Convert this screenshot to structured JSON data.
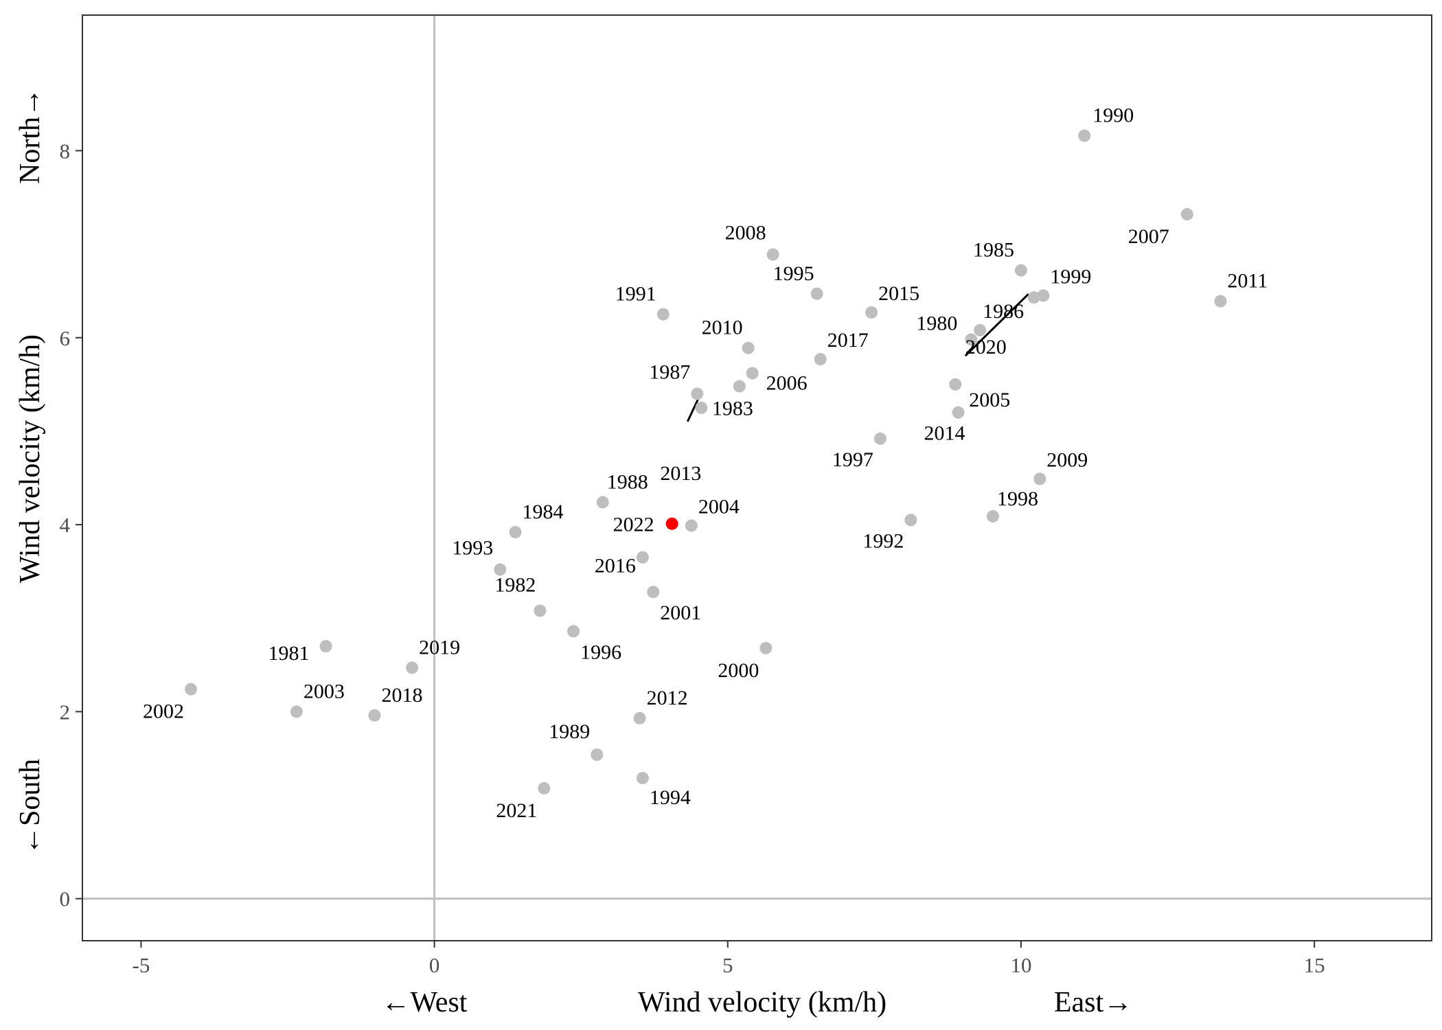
{
  "chart_data": {
    "type": "scatter",
    "xlabel": "Wind velocity (km/h)",
    "ylabel": "Wind velocity (km/h)",
    "x_direction_labels": {
      "negative": "←West",
      "positive": "East→"
    },
    "y_direction_labels": {
      "negative": "←South",
      "positive": "North→"
    },
    "xlim": [
      -6.0,
      17.0
    ],
    "ylim": [
      -0.45,
      9.45
    ],
    "x_ticks": [
      -5,
      0,
      5,
      10,
      15
    ],
    "y_ticks": [
      0,
      2,
      4,
      6,
      8
    ],
    "x_tick_labels": [
      "-5",
      "0",
      "5",
      "10",
      "15"
    ],
    "y_tick_labels": [
      "0",
      "2",
      "4",
      "6",
      "8"
    ],
    "grid": false,
    "reference_lines": {
      "x": 0,
      "y": 0
    },
    "point_color": "#bebebe",
    "highlight_color": "#ff0000",
    "label_color": "#000000",
    "points": [
      {
        "label": "1980",
        "x": 9.15,
        "y": 5.98
      },
      {
        "label": "1981",
        "x": -1.85,
        "y": 2.7
      },
      {
        "label": "1982",
        "x": 1.8,
        "y": 3.08
      },
      {
        "label": "1983",
        "x": 5.2,
        "y": 5.48
      },
      {
        "label": "1984",
        "x": 1.38,
        "y": 3.92
      },
      {
        "label": "1985",
        "x": 10.0,
        "y": 6.72
      },
      {
        "label": "1986",
        "x": 9.3,
        "y": 6.08
      },
      {
        "label": "1987",
        "x": 4.48,
        "y": 5.4
      },
      {
        "label": "1988",
        "x": 2.87,
        "y": 4.24
      },
      {
        "label": "1989",
        "x": 2.77,
        "y": 1.54
      },
      {
        "label": "1990",
        "x": 11.08,
        "y": 8.16
      },
      {
        "label": "1991",
        "x": 3.9,
        "y": 6.25
      },
      {
        "label": "1992",
        "x": 8.12,
        "y": 4.05
      },
      {
        "label": "1993",
        "x": 1.12,
        "y": 3.52
      },
      {
        "label": "1994",
        "x": 3.55,
        "y": 1.29
      },
      {
        "label": "1995",
        "x": 6.52,
        "y": 6.47
      },
      {
        "label": "1996",
        "x": 2.37,
        "y": 2.86
      },
      {
        "label": "1997",
        "x": 7.6,
        "y": 4.92
      },
      {
        "label": "1998",
        "x": 9.52,
        "y": 4.09
      },
      {
        "label": "1999",
        "x": 10.38,
        "y": 6.45
      },
      {
        "label": "2000",
        "x": 5.65,
        "y": 2.68
      },
      {
        "label": "2001",
        "x": 3.73,
        "y": 3.28
      },
      {
        "label": "2002",
        "x": -4.15,
        "y": 2.24
      },
      {
        "label": "2003",
        "x": -2.35,
        "y": 2.0
      },
      {
        "label": "2004",
        "x": 4.38,
        "y": 3.99
      },
      {
        "label": "2005",
        "x": 8.88,
        "y": 5.5
      },
      {
        "label": "2006",
        "x": 5.42,
        "y": 5.62
      },
      {
        "label": "2007",
        "x": 12.83,
        "y": 7.32
      },
      {
        "label": "2008",
        "x": 5.77,
        "y": 6.89
      },
      {
        "label": "2009",
        "x": 10.32,
        "y": 4.49
      },
      {
        "label": "2010",
        "x": 5.35,
        "y": 5.89
      },
      {
        "label": "2011",
        "x": 13.4,
        "y": 6.39
      },
      {
        "label": "2012",
        "x": 3.5,
        "y": 1.93
      },
      {
        "label": "2013",
        "x": 4.55,
        "y": 5.25
      },
      {
        "label": "2014",
        "x": 8.93,
        "y": 5.2
      },
      {
        "label": "2015",
        "x": 7.45,
        "y": 6.27
      },
      {
        "label": "2016",
        "x": 3.55,
        "y": 3.65
      },
      {
        "label": "2017",
        "x": 6.58,
        "y": 5.77
      },
      {
        "label": "2018",
        "x": -1.02,
        "y": 1.96
      },
      {
        "label": "2019",
        "x": -0.38,
        "y": 2.47
      },
      {
        "label": "2020",
        "x": 10.22,
        "y": 6.43
      },
      {
        "label": "2021",
        "x": 1.87,
        "y": 1.18
      },
      {
        "label": "2022",
        "x": 4.05,
        "y": 4.01,
        "highlight": true
      }
    ]
  }
}
